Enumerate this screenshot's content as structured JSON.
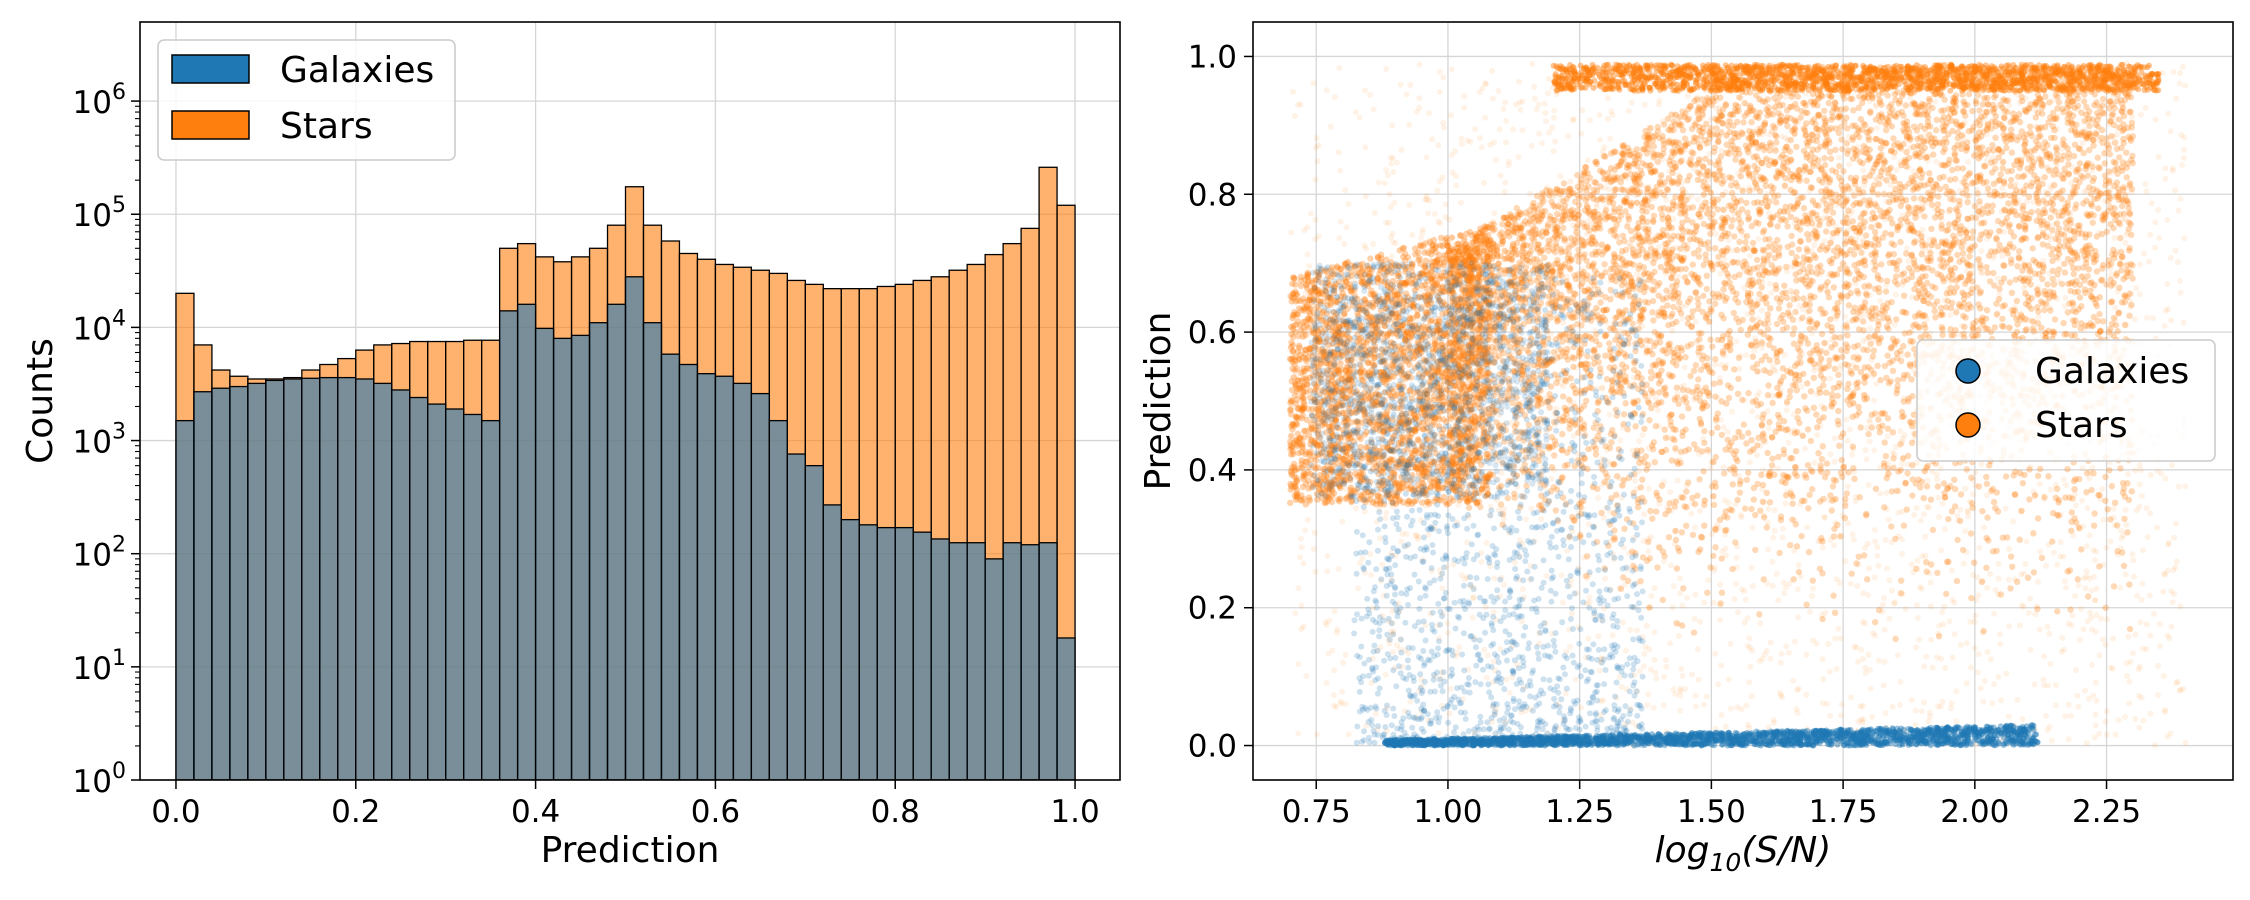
{
  "chart_data": [
    {
      "type": "bar",
      "subtype": "overlaid-histogram",
      "xlabel": "Prediction",
      "ylabel": "Counts",
      "yscale": "log",
      "ylim": [
        1,
        5000000
      ],
      "xlim": [
        -0.04,
        1.05
      ],
      "grid": true,
      "legend_position": "top-left",
      "xticks": [
        "0.0",
        "0.2",
        "0.4",
        "0.6",
        "0.8",
        "1.0"
      ],
      "yticks": [
        {
          "base": "10",
          "exp": "0"
        },
        {
          "base": "10",
          "exp": "1"
        },
        {
          "base": "10",
          "exp": "2"
        },
        {
          "base": "10",
          "exp": "3"
        },
        {
          "base": "10",
          "exp": "4"
        },
        {
          "base": "10",
          "exp": "5"
        },
        {
          "base": "10",
          "exp": "6"
        }
      ],
      "bin_edges_start": 0.0,
      "bin_width": 0.02,
      "series": [
        {
          "name": "Galaxies",
          "color": "#1f77b4",
          "values": [
            1500,
            2700,
            2900,
            3000,
            3200,
            3400,
            3500,
            3550,
            3600,
            3600,
            3500,
            3200,
            2800,
            2400,
            2100,
            1900,
            1700,
            1500,
            14000,
            16000,
            9800,
            8000,
            8500,
            11000,
            16000,
            28000,
            11000,
            5800,
            4700,
            3900,
            3700,
            3200,
            2600,
            1500,
            760,
            600,
            270,
            200,
            180,
            170,
            170,
            155,
            135,
            125,
            125,
            90,
            125,
            120,
            125,
            18
          ]
        },
        {
          "name": "Stars",
          "color": "#ff7f0e",
          "values": [
            20000,
            7000,
            4200,
            3700,
            3500,
            3500,
            3600,
            4200,
            4700,
            5300,
            6300,
            7000,
            7200,
            7500,
            7500,
            7500,
            7700,
            7700,
            50000,
            55000,
            42000,
            38000,
            42000,
            50000,
            80000,
            175000,
            80000,
            58000,
            45000,
            40000,
            36000,
            34000,
            32000,
            30000,
            26000,
            24000,
            22000,
            22000,
            22000,
            23000,
            24000,
            26000,
            28000,
            32000,
            36000,
            44000,
            55000,
            75000,
            260000,
            120000
          ]
        }
      ]
    },
    {
      "type": "scatter",
      "xlabel_pre": "log",
      "xlabel_sub": "10",
      "xlabel_post": "(S/N)",
      "ylabel": "Prediction",
      "xlim": [
        0.63,
        2.49
      ],
      "ylim": [
        -0.05,
        1.05
      ],
      "grid": true,
      "legend_position": "center-right",
      "xticks": [
        "0.75",
        "1.00",
        "1.25",
        "1.50",
        "1.75",
        "2.00",
        "2.25"
      ],
      "yticks": [
        "0.0",
        "0.2",
        "0.4",
        "0.6",
        "0.8",
        "1.0"
      ],
      "series": [
        {
          "name": "Galaxies",
          "color": "#1f77b4",
          "regions": [
            {
              "x": [
                0.88,
                2.12
              ],
              "y": [
                0.0,
                0.03
              ],
              "density": "high"
            },
            {
              "x": [
                0.85,
                1.3
              ],
              "y": [
                0.0,
                0.7
              ],
              "density": "medium"
            },
            {
              "x": [
                0.75,
                1.05
              ],
              "y": [
                0.35,
                0.7
              ],
              "density": "medium"
            }
          ]
        },
        {
          "name": "Stars",
          "color": "#ff7f0e",
          "regions": [
            {
              "x": [
                0.7,
                1.05
              ],
              "y": [
                0.35,
                0.68
              ],
              "density": "high"
            },
            {
              "x": [
                1.0,
                2.3
              ],
              "y": [
                0.35,
                0.99
              ],
              "density": "high"
            },
            {
              "x": [
                0.7,
                2.4
              ],
              "y": [
                0.0,
                0.99
              ],
              "density": "low"
            }
          ]
        }
      ]
    }
  ]
}
